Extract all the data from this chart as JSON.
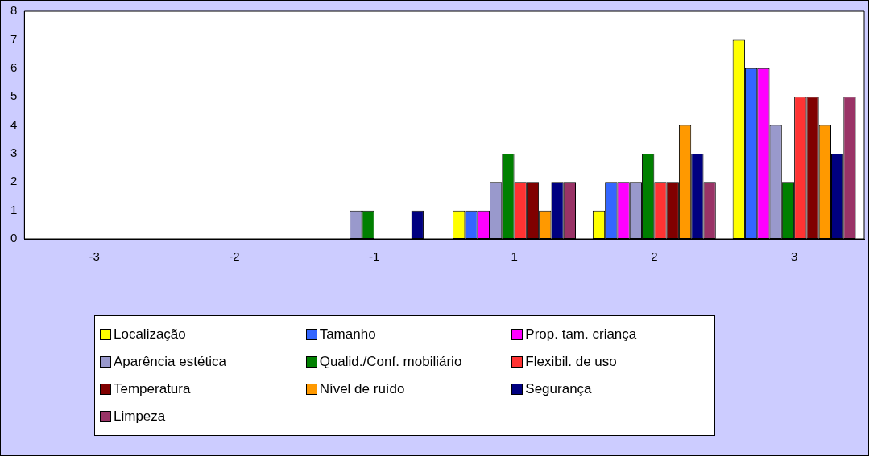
{
  "chart_data": {
    "type": "bar",
    "categories": [
      "-3",
      "-2",
      "-1",
      "1",
      "2",
      "3"
    ],
    "series": [
      {
        "name": "Localização",
        "color": "#ffff00",
        "values": [
          0,
          0,
          0,
          1,
          1,
          7
        ]
      },
      {
        "name": "Tamanho",
        "color": "#3366ff",
        "values": [
          0,
          0,
          0,
          1,
          2,
          6
        ]
      },
      {
        "name": "Prop. tam. criança",
        "color": "#ff00ff",
        "values": [
          0,
          0,
          0,
          1,
          2,
          6
        ]
      },
      {
        "name": "Aparência estética",
        "color": "#9999cc",
        "values": [
          0,
          0,
          1,
          2,
          2,
          4
        ]
      },
      {
        "name": "Qualid./Conf. mobiliário",
        "color": "#008000",
        "values": [
          0,
          0,
          1,
          3,
          3,
          2
        ]
      },
      {
        "name": "Flexibil. de uso",
        "color": "#ff3333",
        "values": [
          0,
          0,
          0,
          2,
          2,
          5
        ]
      },
      {
        "name": "Temperatura",
        "color": "#800000",
        "values": [
          0,
          0,
          0,
          2,
          2,
          5
        ]
      },
      {
        "name": "Nível de ruído",
        "color": "#ff9900",
        "values": [
          0,
          0,
          0,
          1,
          4,
          4
        ]
      },
      {
        "name": "Segurança",
        "color": "#000080",
        "values": [
          0,
          0,
          1,
          2,
          3,
          3
        ]
      },
      {
        "name": "Limpeza",
        "color": "#993366",
        "values": [
          0,
          0,
          0,
          2,
          2,
          5
        ]
      }
    ],
    "ylim": [
      0,
      8
    ],
    "yticks": [
      0,
      1,
      2,
      3,
      4,
      5,
      6,
      7,
      8
    ],
    "grid": false,
    "legend": "bottom"
  }
}
